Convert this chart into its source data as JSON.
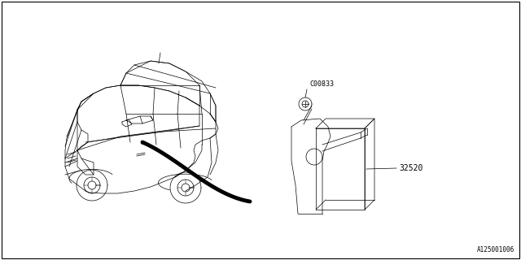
{
  "background_color": "#ffffff",
  "border_color": "#000000",
  "label_c00833": "C00833",
  "label_32520": "32520",
  "label_diagram_id": "A125001006",
  "text_color": "#000000",
  "line_color": "#000000",
  "fig_width": 6.4,
  "fig_height": 3.2,
  "dpi": 100,
  "lw_thin": 0.5,
  "lw_curve": 3.5
}
